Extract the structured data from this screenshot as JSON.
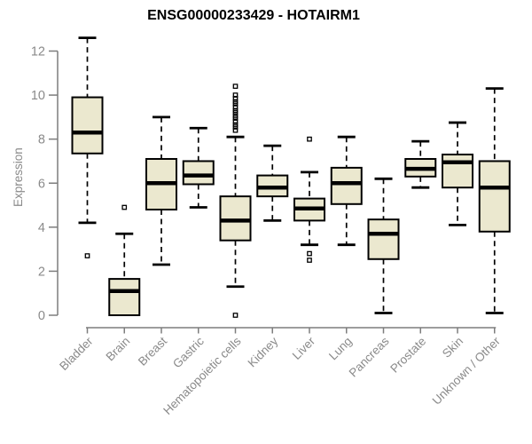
{
  "chart_data": {
    "type": "boxplot",
    "title": "ENSG00000233429 - HOTAIRM1",
    "ylabel": "Expression",
    "xlabel": "",
    "ylim": [
      0,
      12
    ],
    "yticks": [
      0,
      2,
      4,
      6,
      8,
      10,
      12
    ],
    "grid": false,
    "legend": null,
    "categories": [
      "Bladder",
      "Brain",
      "Breast",
      "Gastric",
      "Hematopoietic cells",
      "Kidney",
      "Liver",
      "Lung",
      "Pancreas",
      "Prostate",
      "Skin",
      "Unknown / Other"
    ],
    "series": [
      {
        "name": "Bladder",
        "whisker_low": 4.2,
        "q1": 7.35,
        "median": 8.3,
        "q3": 9.9,
        "whisker_high": 12.6,
        "outliers": [
          2.7
        ]
      },
      {
        "name": "Brain",
        "whisker_low": 0.0,
        "q1": 0.0,
        "median": 1.1,
        "q3": 1.65,
        "whisker_high": 3.7,
        "outliers": [
          4.9
        ]
      },
      {
        "name": "Breast",
        "whisker_low": 2.3,
        "q1": 4.8,
        "median": 6.0,
        "q3": 7.1,
        "whisker_high": 9.0,
        "outliers": []
      },
      {
        "name": "Gastric",
        "whisker_low": 4.9,
        "q1": 5.95,
        "median": 6.35,
        "q3": 7.0,
        "whisker_high": 8.5,
        "outliers": []
      },
      {
        "name": "Hematopoietic cells",
        "whisker_low": 1.3,
        "q1": 3.4,
        "median": 4.3,
        "q3": 5.4,
        "whisker_high": 8.1,
        "outliers": [
          10.4,
          10.0,
          9.85,
          9.7,
          9.6,
          9.45,
          9.3,
          9.2,
          9.05,
          8.95,
          8.8,
          8.65,
          8.55,
          8.4,
          0.0
        ]
      },
      {
        "name": "Kidney",
        "whisker_low": 4.3,
        "q1": 5.4,
        "median": 5.8,
        "q3": 6.35,
        "whisker_high": 7.7,
        "outliers": []
      },
      {
        "name": "Liver",
        "whisker_low": 3.2,
        "q1": 4.3,
        "median": 4.85,
        "q3": 5.3,
        "whisker_high": 6.5,
        "outliers": [
          8.0,
          2.8,
          2.5
        ]
      },
      {
        "name": "Lung",
        "whisker_low": 3.2,
        "q1": 5.05,
        "median": 6.0,
        "q3": 6.7,
        "whisker_high": 8.1,
        "outliers": []
      },
      {
        "name": "Pancreas",
        "whisker_low": 0.1,
        "q1": 2.55,
        "median": 3.7,
        "q3": 4.35,
        "whisker_high": 6.2,
        "outliers": []
      },
      {
        "name": "Prostate",
        "whisker_low": 5.8,
        "q1": 6.3,
        "median": 6.65,
        "q3": 7.1,
        "whisker_high": 7.9,
        "outliers": []
      },
      {
        "name": "Skin",
        "whisker_low": 4.1,
        "q1": 5.8,
        "median": 6.95,
        "q3": 7.3,
        "whisker_high": 8.75,
        "outliers": []
      },
      {
        "name": "Unknown / Other",
        "whisker_low": 0.1,
        "q1": 3.8,
        "median": 5.8,
        "q3": 7.0,
        "whisker_high": 10.3,
        "outliers": []
      }
    ],
    "colors": {
      "box_fill": "#EBE8CF",
      "box_border": "#000000",
      "median": "#000000",
      "whisker": "#000000",
      "outlier": "#000000",
      "axis": "#7d7d7d",
      "tick_label": "#8a8a8a",
      "title": "#000000"
    }
  }
}
